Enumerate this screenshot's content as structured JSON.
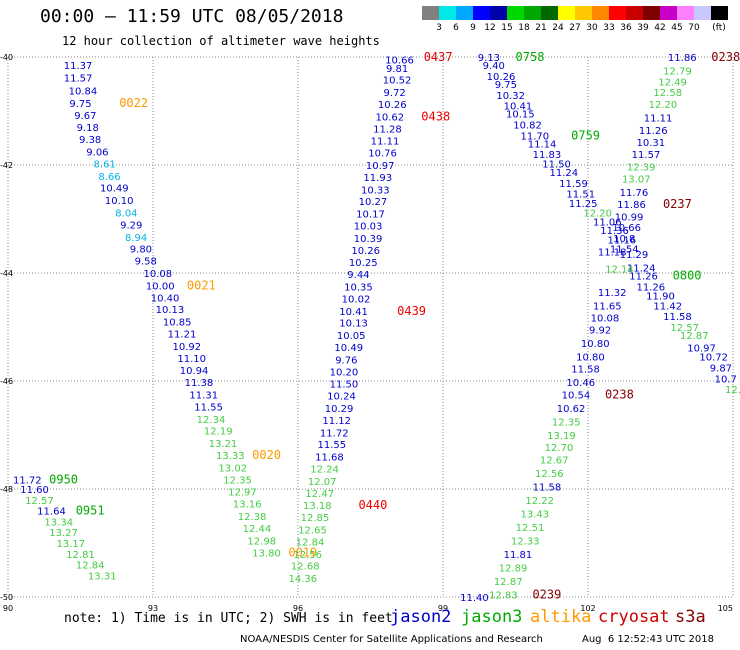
{
  "title": "00:00 – 11:59 UTC 08/05/2018",
  "subtitle": "12 hour collection of altimeter wave heights",
  "legend": {
    "unit": "(ft)",
    "colors": [
      "#808080",
      "#00e8e8",
      "#00a8ff",
      "#0000ff",
      "#0000a8",
      "#00d800",
      "#00a800",
      "#006800",
      "#ffff00",
      "#ffc800",
      "#ff8800",
      "#ff0000",
      "#c80000",
      "#800000",
      "#c800c8",
      "#ff80ff",
      "#c8c8ff",
      "#000000"
    ],
    "labels": [
      "3",
      "6",
      "9",
      "12",
      "15",
      "18",
      "21",
      "24",
      "27",
      "30",
      "33",
      "36",
      "39",
      "42",
      "45",
      "70"
    ]
  },
  "axes": {
    "lat_labels": [
      "-40",
      "-42",
      "-44",
      "-46",
      "-48",
      "-50"
    ],
    "lon_labels": [
      "90",
      "93",
      "96",
      "99",
      "102",
      "105"
    ]
  },
  "note": "note: 1) Time is in UTC; 2) SWH is in feet",
  "satellites": [
    {
      "name": "jason2",
      "color": "#0000cc"
    },
    {
      "name": "jason3",
      "color": "#00aa00"
    },
    {
      "name": "altika",
      "color": "#ff9900"
    },
    {
      "name": "cryosat",
      "color": "#cc0000"
    },
    {
      "name": "s3a",
      "color": "#8b0000"
    }
  ],
  "footer_left": "NOAA/NESDIS Center for Satellite Applications and Research",
  "footer_right": "Aug  6 12:52:43 UTC 2018",
  "chart_data": {
    "type": "scatter",
    "xlim": [
      90,
      105
    ],
    "ylim": [
      -50,
      -40
    ],
    "grid": true,
    "colors": {
      "d": "#0000cc",
      "l": "#44cc44",
      "c": "#00b4e8",
      "g": "#00aa00",
      "o": "#ff9900",
      "r": "#ee0000",
      "m": "#880000"
    },
    "labels": [
      [
        "11.37",
        91.45,
        -40.15,
        "d"
      ],
      [
        "11.57",
        91.45,
        -40.38,
        "d"
      ],
      [
        "10.84",
        91.55,
        -40.62,
        "d"
      ],
      [
        "9.75",
        91.5,
        -40.85,
        "d"
      ],
      [
        "0022",
        92.6,
        -40.85,
        "o"
      ],
      [
        "9.67",
        91.6,
        -41.07,
        "d"
      ],
      [
        "9.18",
        91.65,
        -41.3,
        "d"
      ],
      [
        "9.38",
        91.7,
        -41.52,
        "d"
      ],
      [
        "9.06",
        91.85,
        -41.75,
        "d"
      ],
      [
        "8.61",
        92.0,
        -41.97,
        "c"
      ],
      [
        "8.66",
        92.1,
        -42.2,
        "c"
      ],
      [
        "10.49",
        92.2,
        -42.42,
        "d"
      ],
      [
        "10.10",
        92.3,
        -42.65,
        "d"
      ],
      [
        "8.04",
        92.45,
        -42.88,
        "c"
      ],
      [
        "9.29",
        92.55,
        -43.1,
        "d"
      ],
      [
        "8.94",
        92.65,
        -43.33,
        "c"
      ],
      [
        "9.80",
        92.75,
        -43.55,
        "d"
      ],
      [
        "9.58",
        92.85,
        -43.77,
        "d"
      ],
      [
        "10.08",
        93.1,
        -44.0,
        "d"
      ],
      [
        "10.00",
        93.15,
        -44.23,
        "d"
      ],
      [
        "0021",
        94.0,
        -44.23,
        "o"
      ],
      [
        "10.40",
        93.25,
        -44.45,
        "d"
      ],
      [
        "10.13",
        93.35,
        -44.67,
        "d"
      ],
      [
        "10.85",
        93.5,
        -44.9,
        "d"
      ],
      [
        "11.21",
        93.6,
        -45.12,
        "d"
      ],
      [
        "10.92",
        93.7,
        -45.35,
        "d"
      ],
      [
        "11.10",
        93.8,
        -45.57,
        "d"
      ],
      [
        "10.94",
        93.85,
        -45.8,
        "d"
      ],
      [
        "11.38",
        93.95,
        -46.02,
        "d"
      ],
      [
        "11.31",
        94.05,
        -46.25,
        "d"
      ],
      [
        "11.55",
        94.15,
        -46.47,
        "d"
      ],
      [
        "12.34",
        94.2,
        -46.7,
        "l"
      ],
      [
        "12.19",
        94.35,
        -46.92,
        "l"
      ],
      [
        "13.21",
        94.45,
        -47.15,
        "l"
      ],
      [
        "13.33",
        94.6,
        -47.37,
        "l"
      ],
      [
        "0020",
        95.35,
        -47.37,
        "o"
      ],
      [
        "13.02",
        94.65,
        -47.6,
        "l"
      ],
      [
        "12.35",
        94.75,
        -47.82,
        "l"
      ],
      [
        "12.97",
        94.85,
        -48.05,
        "l"
      ],
      [
        "13.16",
        94.95,
        -48.27,
        "l"
      ],
      [
        "12.38",
        95.05,
        -48.5,
        "l"
      ],
      [
        "12.44",
        95.15,
        -48.72,
        "l"
      ],
      [
        "12.98",
        95.25,
        -48.95,
        "l"
      ],
      [
        "13.80",
        95.35,
        -49.18,
        "l"
      ],
      [
        "0019",
        96.1,
        -49.18,
        "o"
      ],
      [
        "11.72",
        90.4,
        -47.82,
        "d"
      ],
      [
        "0950",
        91.15,
        -47.82,
        "g"
      ],
      [
        "11.60",
        90.55,
        -48.0,
        "d"
      ],
      [
        "12.57",
        90.65,
        -48.2,
        "l"
      ],
      [
        "11.64",
        90.9,
        -48.4,
        "d"
      ],
      [
        "0951",
        91.7,
        -48.4,
        "g"
      ],
      [
        "13.34",
        91.05,
        -48.6,
        "l"
      ],
      [
        "13.27",
        91.15,
        -48.8,
        "l"
      ],
      [
        "13.17",
        91.3,
        -49.0,
        "l"
      ],
      [
        "12.81",
        91.5,
        -49.2,
        "l"
      ],
      [
        "12.84",
        91.7,
        -49.4,
        "l"
      ],
      [
        "13.31",
        91.95,
        -49.6,
        "l"
      ],
      [
        "10.66",
        98.1,
        -40.05,
        "d"
      ],
      [
        "0437",
        98.9,
        -40.0,
        "r"
      ],
      [
        "9.81",
        98.05,
        -40.2,
        "d"
      ],
      [
        "10.52",
        98.05,
        -40.42,
        "d"
      ],
      [
        "9.72",
        98.0,
        -40.65,
        "d"
      ],
      [
        "10.26",
        97.95,
        -40.87,
        "d"
      ],
      [
        "10.62",
        97.9,
        -41.1,
        "d"
      ],
      [
        "0438",
        98.85,
        -41.1,
        "r"
      ],
      [
        "11.28",
        97.85,
        -41.32,
        "d"
      ],
      [
        "11.11",
        97.8,
        -41.55,
        "d"
      ],
      [
        "10.76",
        97.75,
        -41.77,
        "d"
      ],
      [
        "10.97",
        97.7,
        -42.0,
        "d"
      ],
      [
        "11.93",
        97.65,
        -42.22,
        "d"
      ],
      [
        "10.33",
        97.6,
        -42.45,
        "d"
      ],
      [
        "10.27",
        97.55,
        -42.67,
        "d"
      ],
      [
        "10.17",
        97.5,
        -42.9,
        "d"
      ],
      [
        "10.03",
        97.45,
        -43.12,
        "d"
      ],
      [
        "10.39",
        97.45,
        -43.35,
        "d"
      ],
      [
        "10.26",
        97.4,
        -43.57,
        "d"
      ],
      [
        "10.25",
        97.35,
        -43.8,
        "d"
      ],
      [
        "9.44",
        97.25,
        -44.02,
        "d"
      ],
      [
        "10.35",
        97.25,
        -44.25,
        "d"
      ],
      [
        "10.02",
        97.2,
        -44.47,
        "d"
      ],
      [
        "10.41",
        97.15,
        -44.7,
        "d"
      ],
      [
        "0439",
        98.35,
        -44.7,
        "r"
      ],
      [
        "10.13",
        97.15,
        -44.92,
        "d"
      ],
      [
        "10.05",
        97.1,
        -45.15,
        "d"
      ],
      [
        "10.49",
        97.05,
        -45.37,
        "d"
      ],
      [
        "9.76",
        97.0,
        -45.6,
        "d"
      ],
      [
        "10.20",
        96.95,
        -45.82,
        "d"
      ],
      [
        "11.50",
        96.95,
        -46.05,
        "d"
      ],
      [
        "10.24",
        96.9,
        -46.27,
        "d"
      ],
      [
        "10.29",
        96.85,
        -46.5,
        "d"
      ],
      [
        "11.12",
        96.8,
        -46.72,
        "d"
      ],
      [
        "11.72",
        96.75,
        -46.95,
        "d"
      ],
      [
        "11.55",
        96.7,
        -47.17,
        "d"
      ],
      [
        "11.68",
        96.65,
        -47.4,
        "d"
      ],
      [
        "12.24",
        96.55,
        -47.62,
        "l"
      ],
      [
        "12.07",
        96.5,
        -47.85,
        "l"
      ],
      [
        "12.47",
        96.45,
        -48.07,
        "l"
      ],
      [
        "13.18",
        96.4,
        -48.3,
        "l"
      ],
      [
        "0440",
        97.55,
        -48.3,
        "r"
      ],
      [
        "12.85",
        96.35,
        -48.52,
        "l"
      ],
      [
        "12.65",
        96.3,
        -48.75,
        "l"
      ],
      [
        "12.84",
        96.25,
        -48.97,
        "l"
      ],
      [
        "12.56",
        96.2,
        -49.2,
        "l"
      ],
      [
        "12.68",
        96.15,
        -49.42,
        "l"
      ],
      [
        "14.36",
        96.1,
        -49.65,
        "l"
      ],
      [
        "9.13",
        99.95,
        -40.0,
        "d"
      ],
      [
        "0758",
        100.8,
        -40.0,
        "g"
      ],
      [
        "9.40",
        100.05,
        -40.15,
        "d"
      ],
      [
        "10.26",
        100.2,
        -40.35,
        "d"
      ],
      [
        "9.75",
        100.3,
        -40.5,
        "d"
      ],
      [
        "10.32",
        100.4,
        -40.7,
        "d"
      ],
      [
        "10.41",
        100.55,
        -40.9,
        "d"
      ],
      [
        "10.15",
        100.6,
        -41.05,
        "d"
      ],
      [
        "10.82",
        100.75,
        -41.25,
        "d"
      ],
      [
        "11.70",
        100.9,
        -41.45,
        "d"
      ],
      [
        "0759",
        101.95,
        -41.45,
        "g"
      ],
      [
        "11.14",
        101.05,
        -41.6,
        "d"
      ],
      [
        "11.83",
        101.15,
        -41.8,
        "d"
      ],
      [
        "11.50",
        101.35,
        -41.97,
        "d"
      ],
      [
        "11.24",
        101.5,
        -42.13,
        "d"
      ],
      [
        "11.59",
        101.7,
        -42.33,
        "d"
      ],
      [
        "11.51",
        101.85,
        -42.53,
        "d"
      ],
      [
        "11.25",
        101.9,
        -42.7,
        "d"
      ],
      [
        "12.20",
        102.2,
        -42.88,
        "l"
      ],
      [
        "11.06",
        102.4,
        -43.05,
        "d"
      ],
      [
        "11.36",
        102.55,
        -43.2,
        "d"
      ],
      [
        "11.16",
        102.7,
        -43.38,
        "d"
      ],
      [
        "11.54",
        102.75,
        -43.55,
        "d"
      ],
      [
        "11.29",
        102.95,
        -43.65,
        "d"
      ],
      [
        "11.24",
        103.1,
        -43.9,
        "d"
      ],
      [
        "12.14",
        102.65,
        -43.92,
        "l"
      ],
      [
        "11.26",
        103.15,
        -44.05,
        "d"
      ],
      [
        "0800",
        104.05,
        -44.05,
        "g"
      ],
      [
        "11.26",
        103.3,
        -44.25,
        "d"
      ],
      [
        "11.90",
        103.5,
        -44.42,
        "d"
      ],
      [
        "11.42",
        103.65,
        -44.6,
        "d"
      ],
      [
        "11.58",
        103.85,
        -44.8,
        "d"
      ],
      [
        "12.57",
        104.0,
        -45.0,
        "l"
      ],
      [
        "12.87",
        104.2,
        -45.15,
        "l"
      ],
      [
        "10.97",
        104.35,
        -45.38,
        "d"
      ],
      [
        "10.72",
        104.6,
        -45.55,
        "d"
      ],
      [
        "9.87",
        104.75,
        -45.75,
        "d"
      ],
      [
        "10.7",
        104.85,
        -45.95,
        "d"
      ],
      [
        "12.",
        105.0,
        -46.15,
        "l"
      ],
      [
        "11.86",
        103.95,
        -40.0,
        "d"
      ],
      [
        "0238",
        104.85,
        -40.0,
        "m"
      ],
      [
        "12.79",
        103.85,
        -40.25,
        "l"
      ],
      [
        "12.49",
        103.75,
        -40.45,
        "l"
      ],
      [
        "12.58",
        103.65,
        -40.65,
        "l"
      ],
      [
        "12.20",
        103.55,
        -40.87,
        "l"
      ],
      [
        "11.11",
        103.45,
        -41.12,
        "d"
      ],
      [
        "11.26",
        103.35,
        -41.35,
        "d"
      ],
      [
        "10.31",
        103.3,
        -41.57,
        "d"
      ],
      [
        "11.57",
        103.2,
        -41.8,
        "d"
      ],
      [
        "12.39",
        103.1,
        -42.03,
        "l"
      ],
      [
        "13.07",
        103.0,
        -42.25,
        "l"
      ],
      [
        "11.76",
        102.95,
        -42.5,
        "d"
      ],
      [
        "11.86",
        102.9,
        -42.72,
        "d"
      ],
      [
        "0237",
        103.85,
        -42.72,
        "m"
      ],
      [
        "10.99",
        102.85,
        -42.95,
        "d"
      ],
      [
        "10.66",
        102.8,
        -43.15,
        "d"
      ],
      [
        "10.8",
        102.75,
        -43.35,
        "d"
      ],
      [
        "11.18",
        102.5,
        -43.6,
        "d"
      ],
      [
        "11.32",
        102.5,
        -44.35,
        "d"
      ],
      [
        "11.65",
        102.4,
        -44.6,
        "d"
      ],
      [
        "10.08",
        102.35,
        -44.82,
        "d"
      ],
      [
        "9.92",
        102.25,
        -45.05,
        "d"
      ],
      [
        "10.80",
        102.15,
        -45.3,
        "d"
      ],
      [
        "10.80",
        102.05,
        -45.55,
        "d"
      ],
      [
        "11.58",
        101.95,
        -45.77,
        "d"
      ],
      [
        "10.46",
        101.85,
        -46.02,
        "d"
      ],
      [
        "10.54",
        101.75,
        -46.25,
        "d"
      ],
      [
        "0238",
        102.65,
        -46.25,
        "m"
      ],
      [
        "10.62",
        101.65,
        -46.5,
        "d"
      ],
      [
        "12.35",
        101.55,
        -46.75,
        "l"
      ],
      [
        "13.19",
        101.45,
        -47.0,
        "l"
      ],
      [
        "12.70",
        101.4,
        -47.22,
        "l"
      ],
      [
        "12.67",
        101.3,
        -47.45,
        "l"
      ],
      [
        "12.56",
        101.2,
        -47.7,
        "l"
      ],
      [
        "11.58",
        101.15,
        -47.95,
        "d"
      ],
      [
        "12.22",
        101.0,
        -48.2,
        "l"
      ],
      [
        "13.43",
        100.9,
        -48.45,
        "l"
      ],
      [
        "12.51",
        100.8,
        -48.7,
        "l"
      ],
      [
        "12.33",
        100.7,
        -48.95,
        "l"
      ],
      [
        "11.81",
        100.55,
        -49.2,
        "d"
      ],
      [
        "12.89",
        100.45,
        -49.45,
        "l"
      ],
      [
        "12.87",
        100.35,
        -49.7,
        "l"
      ],
      [
        "12.83",
        100.25,
        -49.95,
        "l"
      ],
      [
        "0239",
        101.15,
        -49.95,
        "m"
      ],
      [
        "11.40",
        99.65,
        -50.0,
        "d"
      ]
    ]
  }
}
